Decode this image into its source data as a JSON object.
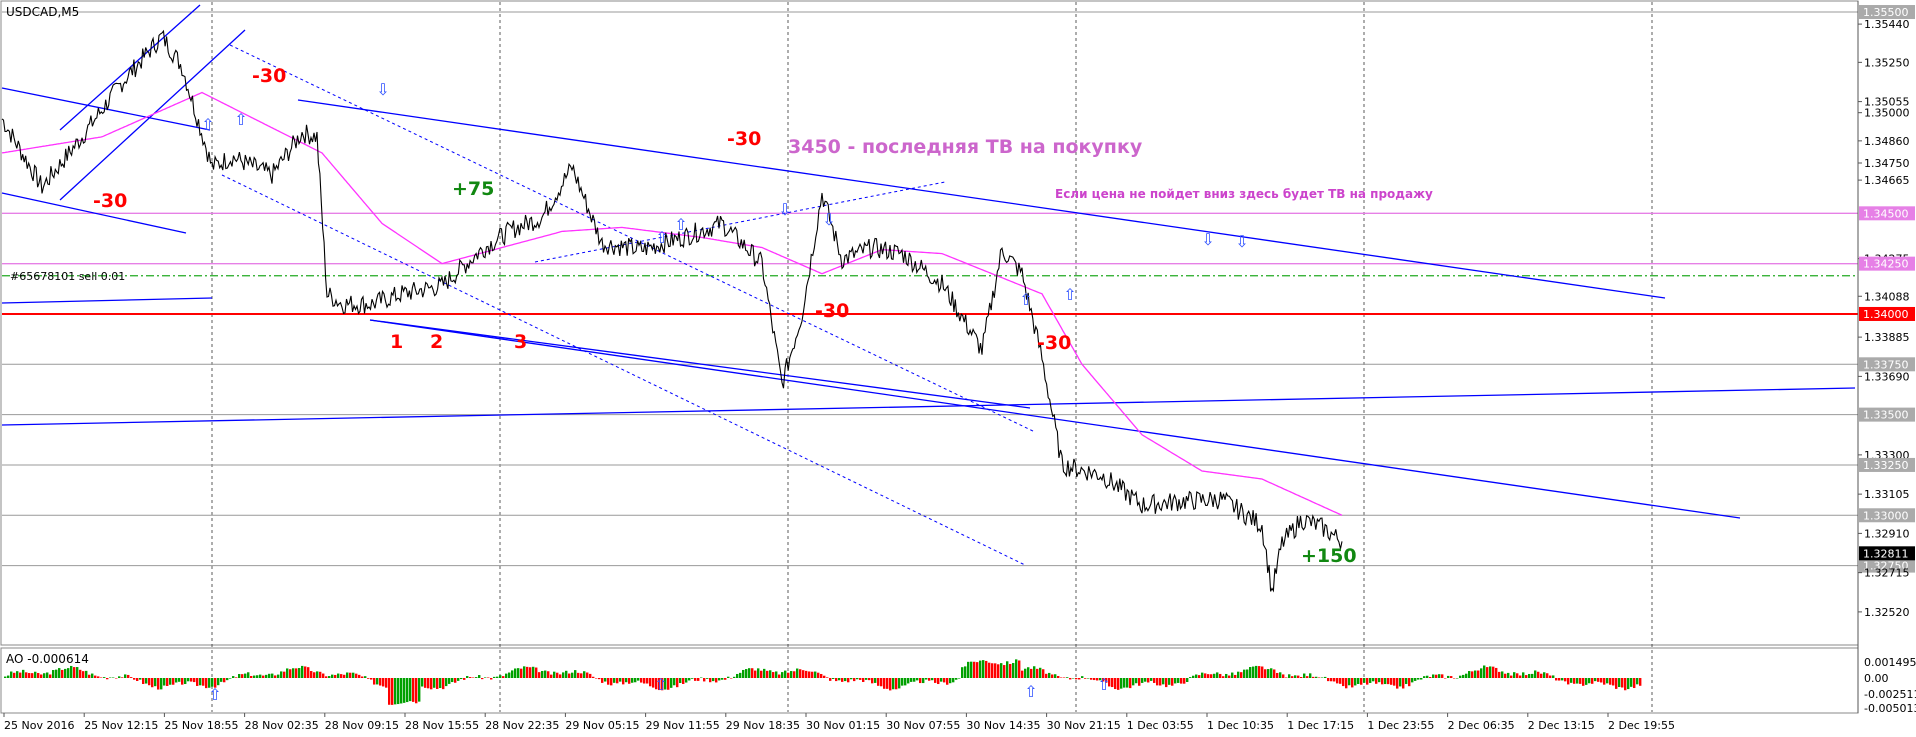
{
  "chart_data": {
    "type": "line",
    "title": "USDCAD,M5",
    "price_axis": {
      "ylim": [
        1.3244,
        1.3552
      ],
      "tick_labels": [
        "1.35500",
        "1.35440",
        "1.35250",
        "1.35055",
        "1.35000",
        "1.34860",
        "1.34750",
        "1.34665",
        "1.34500",
        "1.34275",
        "1.34250",
        "1.34088",
        "1.34000",
        "1.33885",
        "1.33750",
        "1.33690",
        "1.33500",
        "1.33300",
        "1.33250",
        "1.33105",
        "1.33000",
        "1.32910",
        "1.32750",
        "1.32715",
        "1.32520"
      ],
      "highlighted_levels": [
        "1.35500",
        "1.34500",
        "1.34250",
        "1.34000",
        "1.33750",
        "1.33500",
        "1.33250",
        "1.33000",
        "1.32750"
      ],
      "current_price": "1.32811"
    },
    "time_axis": {
      "labels": [
        "25 Nov 2016",
        "25 Nov 12:15",
        "25 Nov 18:55",
        "28 Nov 02:35",
        "28 Nov 09:15",
        "28 Nov 15:55",
        "28 Nov 22:35",
        "29 Nov 05:15",
        "29 Nov 11:55",
        "29 Nov 18:35",
        "30 Nov 01:15",
        "30 Nov 07:55",
        "30 Nov 14:35",
        "30 Nov 21:15",
        "1 Dec 03:55",
        "1 Dec 10:35",
        "1 Dec 17:15",
        "1 Dec 23:55",
        "2 Dec 06:35",
        "2 Dec 13:15",
        "2 Dec 19:55"
      ]
    },
    "price_series": {
      "name": "",
      "x": [
        0,
        40,
        80,
        120,
        160,
        180,
        210,
        230,
        270,
        300,
        315,
        325,
        340,
        370,
        400,
        440,
        480,
        510,
        540,
        570,
        600,
        640,
        680,
        720,
        760,
        780,
        800,
        820,
        840,
        870,
        900,
        940,
        980,
        1000,
        1020,
        1040,
        1060,
        1100,
        1140,
        1180,
        1220,
        1260,
        1270,
        1280,
        1300,
        1320,
        1340
      ],
      "values": [
        1.3497,
        1.3463,
        1.3488,
        1.3515,
        1.3538,
        1.3523,
        1.3473,
        1.3478,
        1.3469,
        1.349,
        1.3488,
        1.341,
        1.3405,
        1.3405,
        1.341,
        1.3414,
        1.3432,
        1.3442,
        1.3448,
        1.3473,
        1.3435,
        1.3432,
        1.3438,
        1.3445,
        1.3425,
        1.3365,
        1.34,
        1.346,
        1.3427,
        1.3433,
        1.343,
        1.3415,
        1.3382,
        1.3432,
        1.342,
        1.3378,
        1.3325,
        1.332,
        1.3305,
        1.3307,
        1.3308,
        1.3295,
        1.3262,
        1.3286,
        1.3298,
        1.3294,
        1.3287
      ]
    },
    "moving_average": {
      "name": "",
      "color": "#ff33ff",
      "x": [
        0,
        100,
        200,
        260,
        320,
        380,
        440,
        500,
        560,
        620,
        700,
        760,
        820,
        880,
        940,
        1000,
        1040,
        1080,
        1140,
        1200,
        1260,
        1340
      ],
      "values": [
        1.348,
        1.3488,
        1.351,
        1.3495,
        1.348,
        1.3445,
        1.3425,
        1.3433,
        1.3441,
        1.3443,
        1.3438,
        1.3433,
        1.342,
        1.3432,
        1.343,
        1.3418,
        1.341,
        1.3375,
        1.334,
        1.3322,
        1.3318,
        1.33
      ]
    },
    "indicator": {
      "label": "AO -0.000614",
      "tick_labels": [
        "0.001495",
        "0.00",
        "-0.002511",
        "-0.005013"
      ]
    },
    "annotations": {
      "title_text": "3450 - последняя ТВ на покупку",
      "note_text": "Если цена не пойдет вниз здесь будет ТВ на продажу",
      "order_label": "#65678101 sell 0.01",
      "red_labels": [
        "-30",
        "-30",
        "-30",
        "-30",
        "-30"
      ],
      "green_labels": [
        "+75",
        "+150"
      ],
      "point_labels": [
        "1",
        "2",
        "3"
      ]
    },
    "colors": {
      "price": "#000000",
      "trendline": "#0000ff",
      "support": "#ff0000",
      "level": "#e680e6",
      "order": "#22aa22",
      "ao_up": "#00a000",
      "ao_down": "#ff0000",
      "current_price_bg": "#000000"
    }
  }
}
